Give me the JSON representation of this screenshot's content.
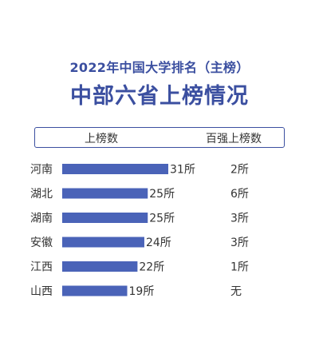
{
  "header": {
    "subtitle": "2022年中国大学排名（主榜）",
    "title": "中部六省上榜情况",
    "col_count_label": "上榜数",
    "col_top100_label": "百强上榜数"
  },
  "colors": {
    "bar": "#4a63b8",
    "accent": "#3b4fa0",
    "text": "#333333"
  },
  "chart_data": {
    "type": "bar",
    "orientation": "horizontal",
    "title": "中部六省上榜情况",
    "categories": [
      "河南",
      "湖北",
      "湖南",
      "安徽",
      "江西",
      "山西"
    ],
    "values": [
      31,
      25,
      25,
      24,
      22,
      19
    ],
    "value_labels": [
      "31所",
      "25所",
      "25所",
      "24所",
      "22所",
      "19所"
    ],
    "top100_labels": [
      "2所",
      "6所",
      "3所",
      "3所",
      "1所",
      "无"
    ],
    "series": [
      {
        "name": "上榜数",
        "values": [
          31,
          25,
          25,
          24,
          22,
          19
        ]
      }
    ],
    "xlim": [
      0,
      31
    ],
    "grid": false,
    "legend": "none"
  }
}
